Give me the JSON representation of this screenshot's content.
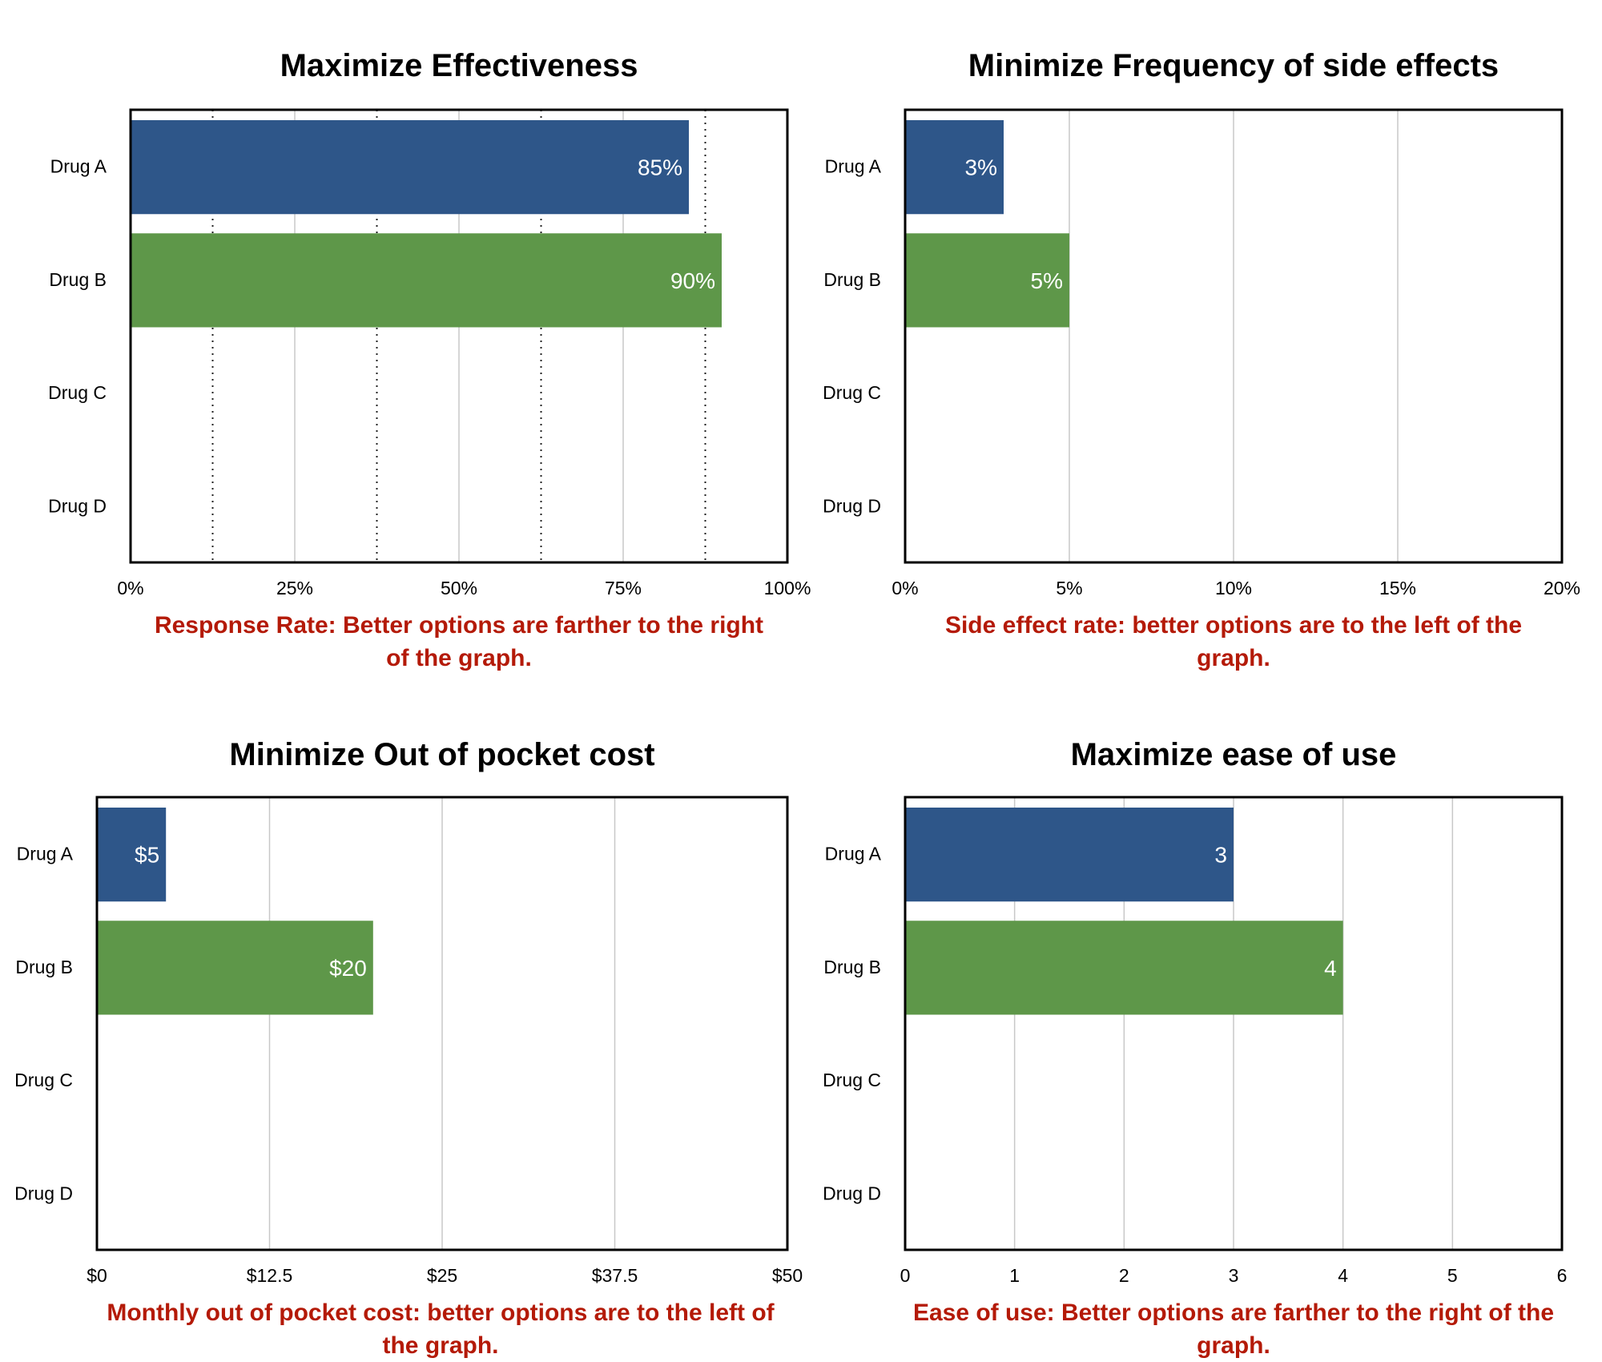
{
  "colors": {
    "drug_a": "#2e5689",
    "drug_b": "#5e9749",
    "caption": "#b41a08",
    "grid": "#c8c8c8",
    "axis": "#000000"
  },
  "chart_data": [
    {
      "type": "bar",
      "title": "Maximize Effectiveness",
      "caption": "Response Rate: Better options are farther to the right of the graph.",
      "categories": [
        "Drug A",
        "Drug B",
        "Drug C",
        "Drug D"
      ],
      "values": [
        85,
        90,
        null,
        null
      ],
      "value_labels": [
        "85%",
        "90%",
        "",
        ""
      ],
      "xlim": [
        0,
        100
      ],
      "ticks": [
        0,
        25,
        50,
        75,
        100
      ],
      "tick_labels": [
        "0%",
        "25%",
        "50%",
        "75%",
        "100%"
      ],
      "dotted_refs": [
        12.5,
        37.5,
        62.5,
        87.5
      ]
    },
    {
      "type": "bar",
      "title": "Minimize Frequency of side effects",
      "caption": "Side effect rate: better options are to the left of the graph.",
      "categories": [
        "Drug A",
        "Drug B",
        "Drug C",
        "Drug D"
      ],
      "values": [
        3,
        5,
        null,
        null
      ],
      "value_labels": [
        "3%",
        "5%",
        "",
        ""
      ],
      "xlim": [
        0,
        20
      ],
      "ticks": [
        0,
        5,
        10,
        15,
        20
      ],
      "tick_labels": [
        "0%",
        "5%",
        "10%",
        "15%",
        "20%"
      ],
      "dotted_refs": []
    },
    {
      "type": "bar",
      "title": "Minimize Out of pocket cost",
      "caption": "Monthly out of pocket cost: better options are to the left of the graph.",
      "categories": [
        "Drug A",
        "Drug B",
        "Drug C",
        "Drug D"
      ],
      "values": [
        5,
        20,
        null,
        null
      ],
      "value_labels": [
        "$5",
        "$20",
        "",
        ""
      ],
      "xlim": [
        0,
        50
      ],
      "ticks": [
        0,
        12.5,
        25,
        37.5,
        50
      ],
      "tick_labels": [
        "$0",
        "$12.5",
        "$25",
        "$37.5",
        "$50"
      ],
      "dotted_refs": []
    },
    {
      "type": "bar",
      "title": "Maximize ease of use",
      "caption": "Ease of use: Better options are farther to the right of the graph.",
      "categories": [
        "Drug A",
        "Drug B",
        "Drug C",
        "Drug D"
      ],
      "values": [
        3,
        4,
        null,
        null
      ],
      "value_labels": [
        "3",
        "4",
        "",
        ""
      ],
      "xlim": [
        0,
        6
      ],
      "ticks": [
        0,
        1,
        2,
        3,
        4,
        5,
        6
      ],
      "tick_labels": [
        "0",
        "1",
        "2",
        "3",
        "4",
        "5",
        "6"
      ],
      "dotted_refs": []
    }
  ]
}
